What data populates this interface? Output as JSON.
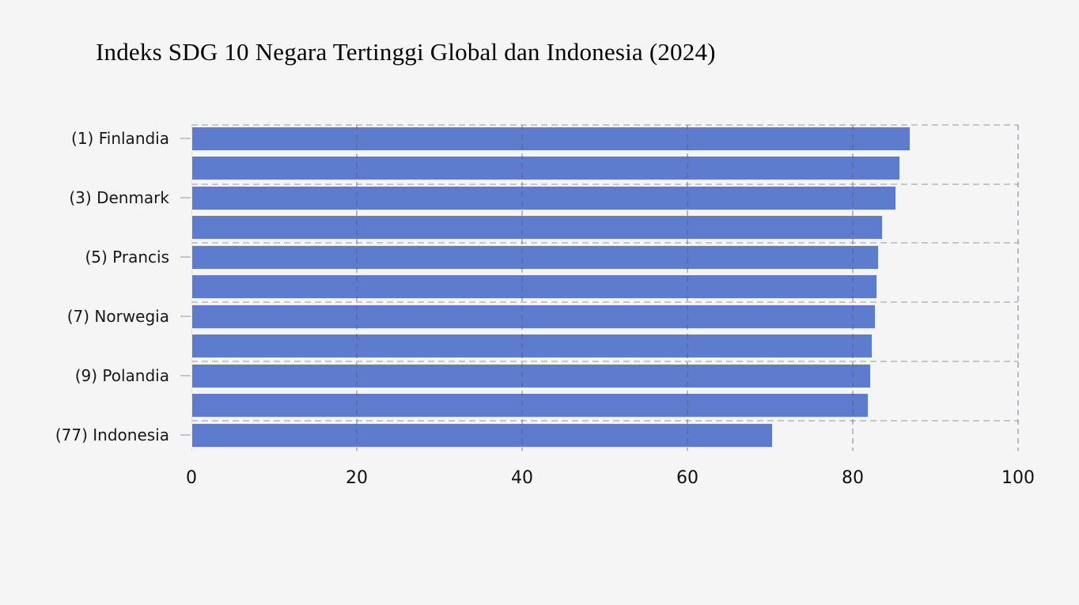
{
  "colors": {
    "background": "#f5f5f6",
    "bar_fill": "#5d7ccd",
    "bar_edge": "#eaecf3",
    "gridline": "#c7c7cb",
    "title_text": "#060606",
    "tick_text": "#17171a"
  },
  "chart_data": {
    "type": "bar",
    "orientation": "horizontal",
    "title": "Indeks SDG 10 Negara Tertinggi Global dan Indonesia (2024)",
    "xlabel": "",
    "ylabel": "",
    "xlim": [
      0,
      100
    ],
    "x_ticks": [
      0,
      20,
      40,
      60,
      80,
      100
    ],
    "grid": "dashed",
    "legend": "none",
    "bars": [
      {
        "label": "(1) Finlandia",
        "value": 87.0
      },
      {
        "label": "",
        "value": 85.7
      },
      {
        "label": "(3) Denmark",
        "value": 85.3
      },
      {
        "label": "",
        "value": 83.6
      },
      {
        "label": "(5) Prancis",
        "value": 83.2
      },
      {
        "label": "",
        "value": 83.0
      },
      {
        "label": "(7) Norwegia",
        "value": 82.8
      },
      {
        "label": "",
        "value": 82.4
      },
      {
        "label": "(9) Polandia",
        "value": 82.2
      },
      {
        "label": "",
        "value": 81.9
      },
      {
        "label": "(77) Indonesia",
        "value": 70.3
      }
    ]
  }
}
